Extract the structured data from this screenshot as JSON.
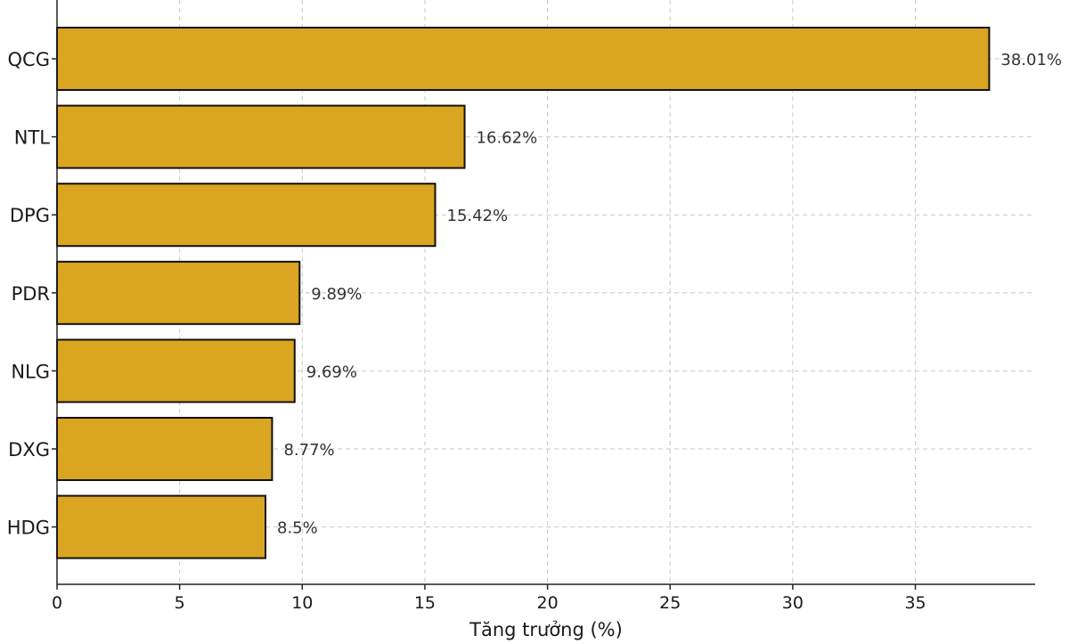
{
  "chart_data": {
    "type": "bar",
    "orientation": "horizontal",
    "categories": [
      "QCG",
      "NTL",
      "DPG",
      "PDR",
      "NLG",
      "DXG",
      "HDG"
    ],
    "values": [
      38.01,
      16.62,
      15.42,
      9.89,
      9.69,
      8.77,
      8.5
    ],
    "data_labels": [
      "38.01%",
      "16.62%",
      "15.42%",
      "9.89%",
      "9.69%",
      "8.77%",
      "8.5%"
    ],
    "title": "",
    "xlabel": "Tăng trưởng (%)",
    "ylabel": "",
    "xlim": [
      0,
      40
    ],
    "x_ticks": [
      0,
      5,
      10,
      15,
      20,
      25,
      30,
      35
    ],
    "grid": true,
    "legend": "none",
    "colors": {
      "bar_fill": "#DAA520",
      "bar_edge": "#111111",
      "grid": "#c8c8c8",
      "axis": "#222222"
    }
  }
}
